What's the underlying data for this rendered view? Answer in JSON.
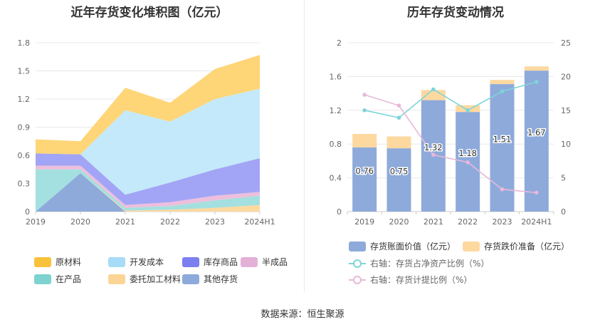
{
  "source_text": "数据来源：恒生聚源",
  "chart_data": [
    {
      "type": "area",
      "stacked": true,
      "title": "近年存货变化堆积图（亿元）",
      "categories": [
        "2019",
        "2020",
        "2021",
        "2022",
        "2023",
        "2024H1"
      ],
      "ylim": [
        0,
        1.8
      ],
      "y_ticks": [
        "0",
        "0.3",
        "0.6",
        "0.9",
        "1.2",
        "1.5",
        "1.8"
      ],
      "grid": true,
      "legend_position": "bottom",
      "series": [
        {
          "name": "其他存货",
          "color": "#8eaadb",
          "values": [
            0.0,
            0.41,
            0.0,
            0.0,
            0.0,
            0.0
          ]
        },
        {
          "name": "委托加工材料",
          "color": "#fdd9a0",
          "values": [
            0.0,
            0.0,
            0.01,
            0.02,
            0.04,
            0.07
          ]
        },
        {
          "name": "在产品",
          "color": "#a4e0df",
          "values": [
            0.45,
            0.04,
            0.03,
            0.04,
            0.08,
            0.1
          ]
        },
        {
          "name": "半成品",
          "color": "#ecbfdc",
          "values": [
            0.04,
            0.04,
            0.03,
            0.04,
            0.05,
            0.04
          ]
        },
        {
          "name": "库存商品",
          "color": "#a2a5f5",
          "values": [
            0.13,
            0.12,
            0.11,
            0.21,
            0.28,
            0.36
          ]
        },
        {
          "name": "开发成本",
          "color": "#c4e9fa",
          "values": [
            0.0,
            0.0,
            0.9,
            0.65,
            0.75,
            0.74
          ]
        },
        {
          "name": "原材料",
          "color": "#fed577",
          "values": [
            0.15,
            0.14,
            0.24,
            0.2,
            0.32,
            0.36
          ]
        }
      ],
      "legend_colors": {
        "原材料": "#f9c23c",
        "开发成本": "#a6dcf7",
        "库存商品": "#7b7ff0",
        "半成品": "#e3b0d8",
        "在产品": "#7ed3d0",
        "委托加工材料": "#fcd594",
        "其他存货": "#8eaadb"
      }
    },
    {
      "type": "bar",
      "stacked": true,
      "title": "历年存货变动情况",
      "categories": [
        "2019",
        "2020",
        "2021",
        "2022",
        "2023",
        "2024H1"
      ],
      "ylim": [
        0,
        2
      ],
      "y_ticks": [
        "0",
        "0.4",
        "0.8",
        "1.2",
        "1.6",
        "2"
      ],
      "y2lim": [
        0,
        25
      ],
      "y2_ticks": [
        "0",
        "5",
        "10",
        "15",
        "20",
        "25"
      ],
      "grid": true,
      "legend_position": "bottom",
      "series": [
        {
          "name": "存货账面价值（亿元）",
          "kind": "bar",
          "color": "#8eaadb",
          "values": [
            0.76,
            0.75,
            1.32,
            1.18,
            1.51,
            1.67
          ],
          "labels": [
            "0.76",
            "0.75",
            "1.32",
            "1.18",
            "1.51",
            "1.67"
          ]
        },
        {
          "name": "存货跌价准备（亿元）",
          "kind": "bar",
          "color": "#fdd9a0",
          "values": [
            0.16,
            0.14,
            0.12,
            0.08,
            0.05,
            0.05
          ]
        },
        {
          "name": "右轴：存货占净资产比例（%）",
          "kind": "line",
          "axis": "right",
          "color": "#7fd4d8",
          "values": [
            15.0,
            13.9,
            18.1,
            15.0,
            17.8,
            19.2
          ]
        },
        {
          "name": "右轴：存货计提比例（%）",
          "kind": "line",
          "axis": "right",
          "color": "#e8b8d8",
          "values": [
            17.3,
            15.7,
            8.4,
            7.3,
            3.3,
            2.8
          ]
        }
      ]
    }
  ]
}
